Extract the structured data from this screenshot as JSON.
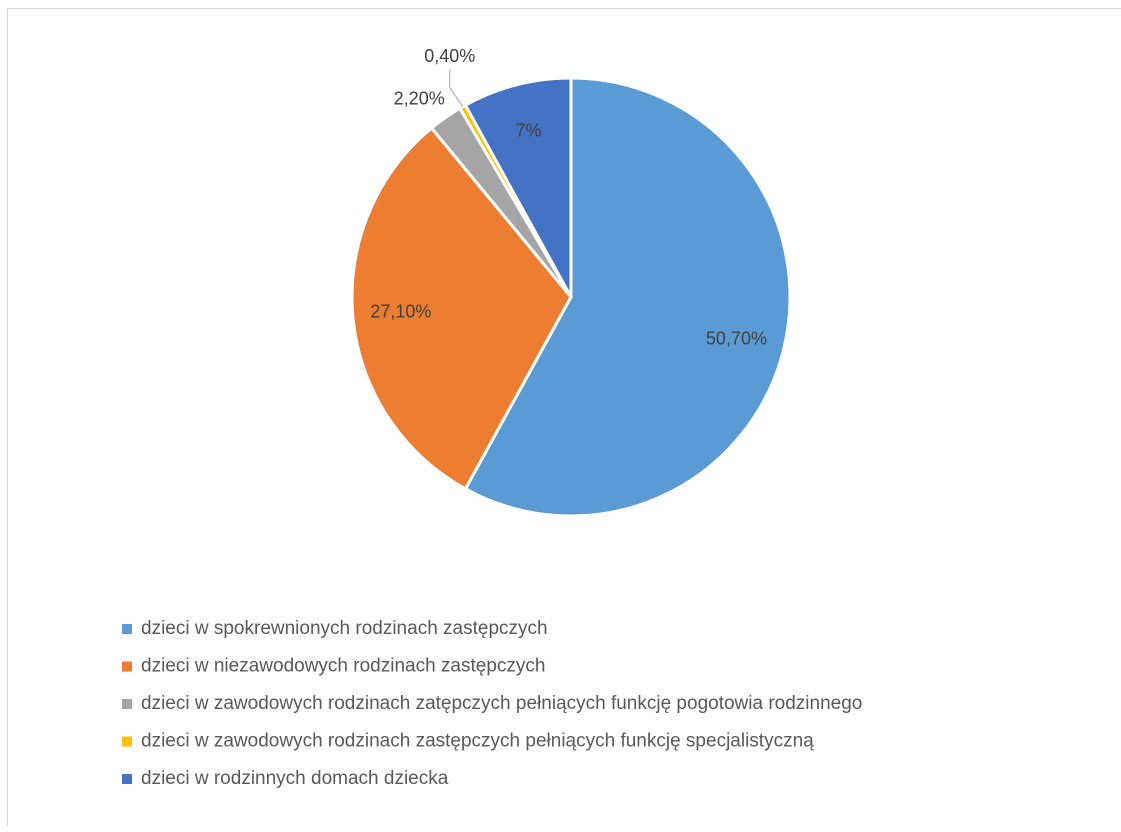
{
  "chart_data": {
    "type": "pie",
    "categories": [
      "dzieci w spokrewnionych rodzinach zastępczych",
      "dzieci w niezawodowych rodzinach zastępczych",
      "dzieci w zawodowych rodzinach zatępczych pełniących funkcję pogotowia rodzinnego",
      "dzieci w zawodowych rodzinach zastępczych pełniących funkcję specjalistyczną",
      "dzieci w rodzinnych domach dziecka"
    ],
    "values": [
      50.7,
      27.1,
      2.2,
      0.4,
      7
    ],
    "value_labels": [
      "50,70%",
      "27,10%",
      "2,20%",
      "0,40%",
      "7%"
    ],
    "colors": [
      "#5b9bd5",
      "#ed7d31",
      "#a5a5a5",
      "#ffc000",
      "#4472c4"
    ],
    "legend": "bottom"
  }
}
